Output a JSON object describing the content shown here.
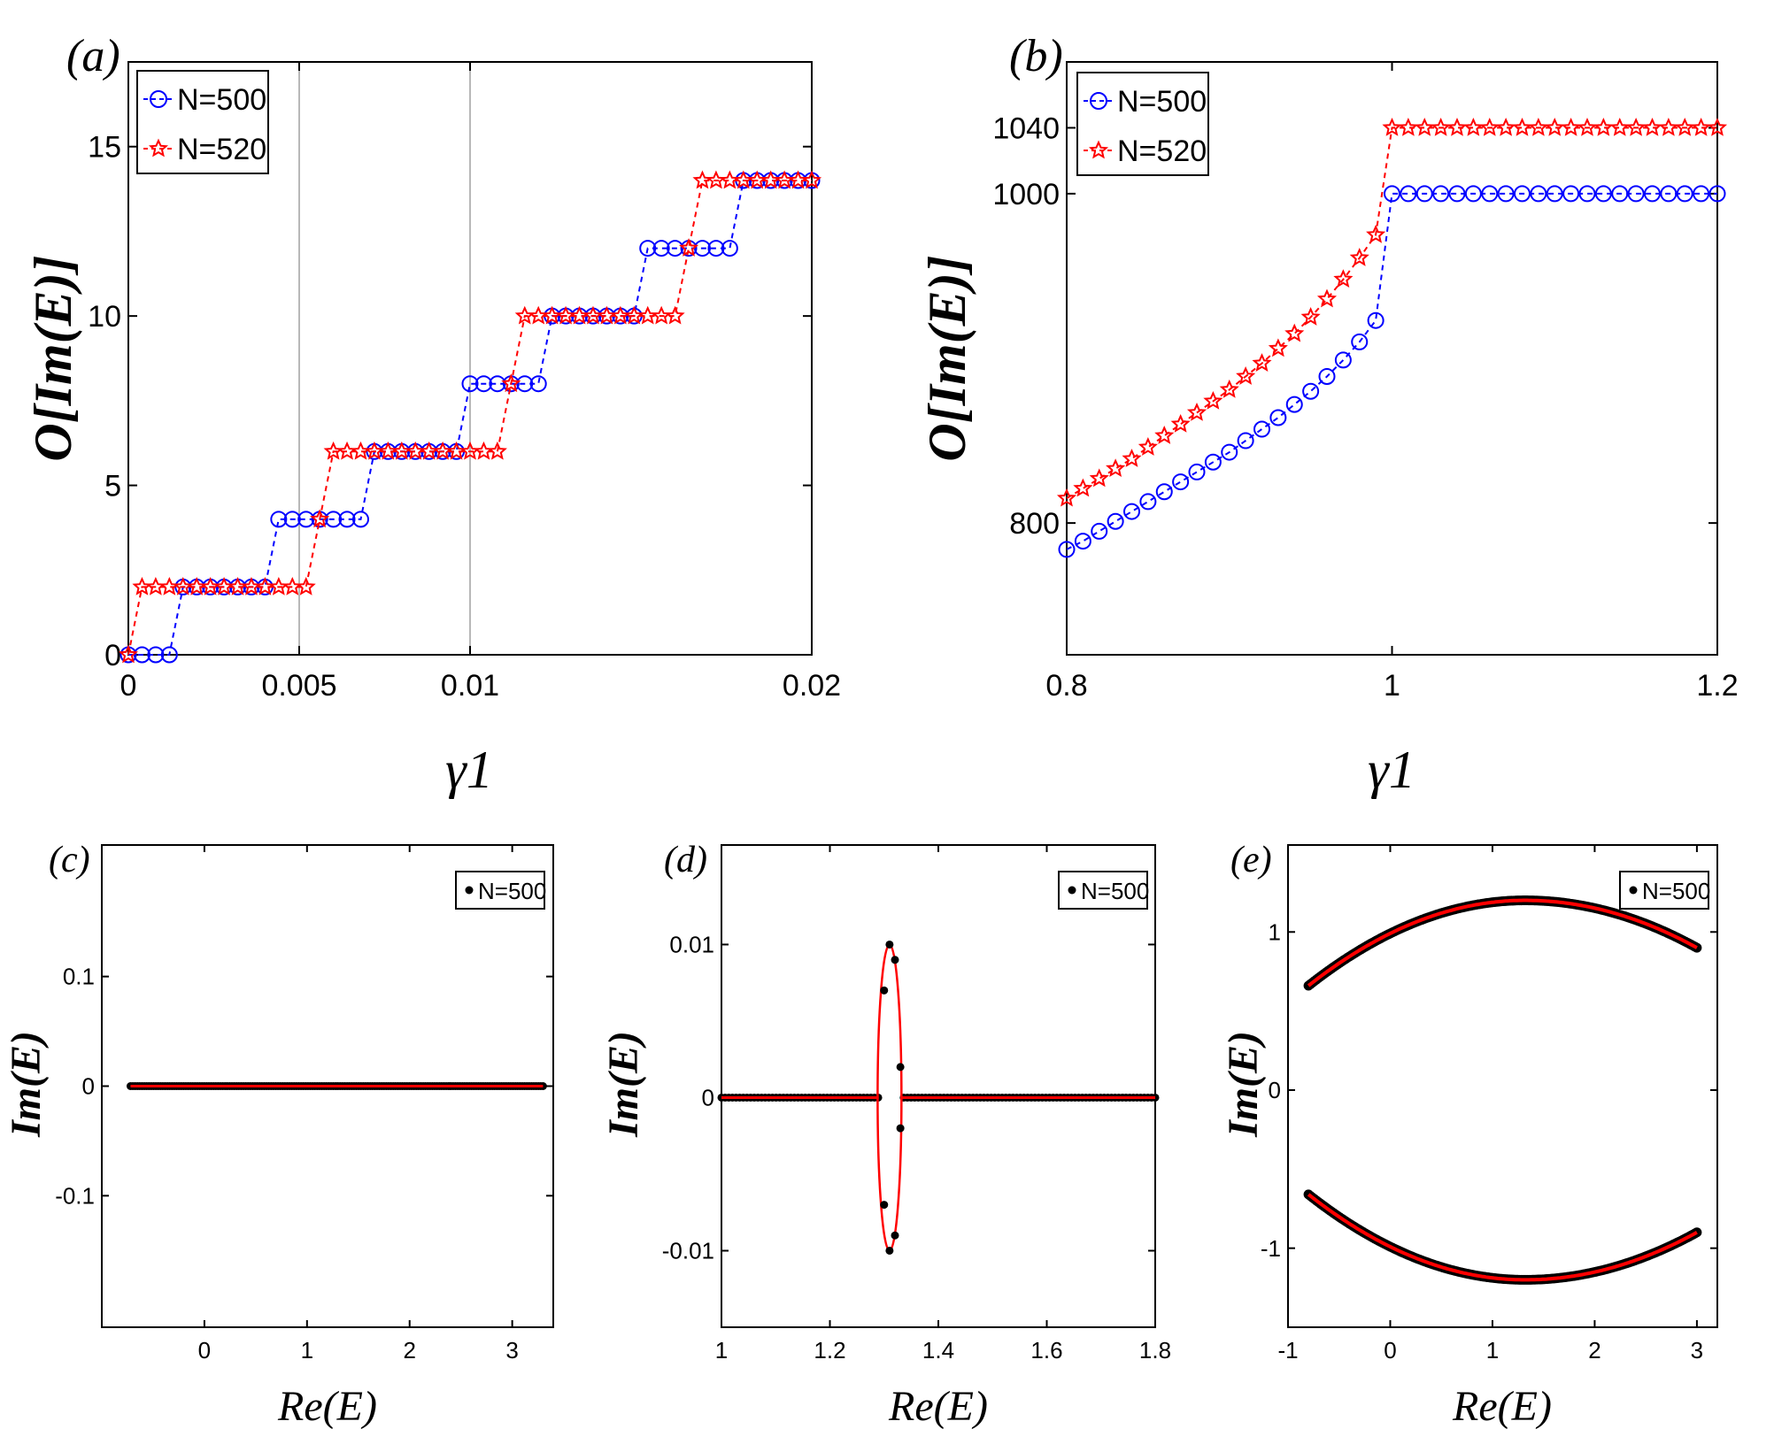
{
  "colors": {
    "blue": "#0000ff",
    "red": "#ff0000",
    "black": "#000000"
  },
  "chart_data": [
    {
      "id": "a",
      "type": "line",
      "panel_label": "(a)",
      "xlabel": "γ1",
      "ylabel": "O[Im(E)]",
      "xlim": [
        0,
        0.02
      ],
      "ylim": [
        0,
        17.5
      ],
      "xticks": [
        0,
        0.005,
        0.01,
        0.02
      ],
      "xtick_labels": [
        "0",
        "0.005",
        "0.01",
        "0.02"
      ],
      "yticks": [
        0,
        5,
        10,
        15
      ],
      "ytick_labels": [
        "0",
        "5",
        "10",
        "15"
      ],
      "reference_lines_x": [
        0.005,
        0.01
      ],
      "legend": {
        "position": "top-left",
        "entries": [
          "N=500",
          "N=520"
        ]
      },
      "series": [
        {
          "name": "N=500",
          "marker": "circle",
          "color": "#0000ff",
          "x": [
            0,
            0.0004,
            0.0008,
            0.0012,
            0.0016,
            0.002,
            0.0024,
            0.0028,
            0.0032,
            0.0036,
            0.004,
            0.0044,
            0.0048,
            0.0052,
            0.0056,
            0.006,
            0.0064,
            0.0068,
            0.0072,
            0.0076,
            0.008,
            0.0084,
            0.0088,
            0.0092,
            0.0096,
            0.01,
            0.0104,
            0.0108,
            0.0112,
            0.0116,
            0.012,
            0.0124,
            0.0128,
            0.0132,
            0.0136,
            0.014,
            0.0144,
            0.0148,
            0.0152,
            0.0156,
            0.016,
            0.0164,
            0.0168,
            0.0172,
            0.0176,
            0.018,
            0.0184,
            0.0188,
            0.0192,
            0.0196,
            0.02
          ],
          "values": [
            0,
            0,
            0,
            0,
            2,
            2,
            2,
            2,
            2,
            2,
            2,
            4,
            4,
            4,
            4,
            4,
            4,
            4,
            6,
            6,
            6,
            6,
            6,
            6,
            6,
            8,
            8,
            8,
            8,
            8,
            8,
            10,
            10,
            10,
            10,
            10,
            10,
            10,
            12,
            12,
            12,
            12,
            12,
            12,
            12,
            14,
            14,
            14,
            14,
            14,
            14
          ]
        },
        {
          "name": "N=520",
          "marker": "star",
          "color": "#ff0000",
          "x": [
            0,
            0.0004,
            0.0008,
            0.0012,
            0.0016,
            0.002,
            0.0024,
            0.0028,
            0.0032,
            0.0036,
            0.004,
            0.0044,
            0.0048,
            0.0052,
            0.0056,
            0.006,
            0.0064,
            0.0068,
            0.0072,
            0.0076,
            0.008,
            0.0084,
            0.0088,
            0.0092,
            0.0096,
            0.01,
            0.0104,
            0.0108,
            0.0112,
            0.0116,
            0.012,
            0.0124,
            0.0128,
            0.0132,
            0.0136,
            0.014,
            0.0144,
            0.0148,
            0.0152,
            0.0156,
            0.016,
            0.0164,
            0.0168,
            0.0172,
            0.0176,
            0.018,
            0.0184,
            0.0188,
            0.0192,
            0.0196,
            0.02
          ],
          "values": [
            0,
            2,
            2,
            2,
            2,
            2,
            2,
            2,
            2,
            2,
            2,
            2,
            2,
            2,
            4,
            6,
            6,
            6,
            6,
            6,
            6,
            6,
            6,
            6,
            6,
            6,
            6,
            6,
            8,
            10,
            10,
            10,
            10,
            10,
            10,
            10,
            10,
            10,
            10,
            10,
            10,
            12,
            14,
            14,
            14,
            14,
            14,
            14,
            14,
            14,
            14
          ]
        }
      ]
    },
    {
      "id": "b",
      "type": "line",
      "panel_label": "(b)",
      "xlabel": "γ1",
      "ylabel": "O[Im(E)]",
      "xlim": [
        0.8,
        1.2
      ],
      "ylim": [
        720,
        1080
      ],
      "xticks": [
        0.8,
        1,
        1.2
      ],
      "xtick_labels": [
        "0.8",
        "1",
        "1.2"
      ],
      "yticks": [
        800,
        1000,
        1040
      ],
      "ytick_labels": [
        "800",
        "1000",
        "1040"
      ],
      "legend": {
        "position": "top-left",
        "entries": [
          "N=500",
          "N=520"
        ]
      },
      "series": [
        {
          "name": "N=500",
          "marker": "circle",
          "color": "#0000ff",
          "x": [
            0.8,
            0.81,
            0.82,
            0.83,
            0.84,
            0.85,
            0.86,
            0.87,
            0.88,
            0.89,
            0.9,
            0.91,
            0.92,
            0.93,
            0.94,
            0.95,
            0.96,
            0.97,
            0.98,
            0.99,
            1.0,
            1.01,
            1.02,
            1.03,
            1.04,
            1.05,
            1.06,
            1.07,
            1.08,
            1.09,
            1.1,
            1.11,
            1.12,
            1.13,
            1.14,
            1.15,
            1.16,
            1.17,
            1.18,
            1.19,
            1.2
          ],
          "values": [
            784,
            789,
            795,
            801,
            807,
            813,
            819,
            825,
            831,
            837,
            843,
            850,
            857,
            864,
            872,
            880,
            889,
            899,
            910,
            923,
            1000,
            1000,
            1000,
            1000,
            1000,
            1000,
            1000,
            1000,
            1000,
            1000,
            1000,
            1000,
            1000,
            1000,
            1000,
            1000,
            1000,
            1000,
            1000,
            1000,
            1000
          ]
        },
        {
          "name": "N=520",
          "marker": "star",
          "color": "#ff0000",
          "x": [
            0.8,
            0.81,
            0.82,
            0.83,
            0.84,
            0.85,
            0.86,
            0.87,
            0.88,
            0.89,
            0.9,
            0.91,
            0.92,
            0.93,
            0.94,
            0.95,
            0.96,
            0.97,
            0.98,
            0.99,
            1.0,
            1.01,
            1.02,
            1.03,
            1.04,
            1.05,
            1.06,
            1.07,
            1.08,
            1.09,
            1.1,
            1.11,
            1.12,
            1.13,
            1.14,
            1.15,
            1.16,
            1.17,
            1.18,
            1.19,
            1.2
          ],
          "values": [
            815,
            821,
            827,
            833,
            839,
            846,
            853,
            860,
            867,
            874,
            881,
            889,
            897,
            906,
            915,
            925,
            936,
            948,
            961,
            975,
            1040,
            1040,
            1040,
            1040,
            1040,
            1040,
            1040,
            1040,
            1040,
            1040,
            1040,
            1040,
            1040,
            1040,
            1040,
            1040,
            1040,
            1040,
            1040,
            1040,
            1040
          ]
        }
      ]
    },
    {
      "id": "c",
      "type": "scatter",
      "panel_label": "(c)",
      "xlabel": "Re(E)",
      "ylabel": "Im(E)",
      "xlim": [
        -1,
        3.4
      ],
      "ylim": [
        -0.22,
        0.22
      ],
      "xticks": [
        0,
        1,
        2,
        3
      ],
      "xtick_labels": [
        "0",
        "1",
        "2",
        "3"
      ],
      "yticks": [
        -0.1,
        0,
        0.1
      ],
      "ytick_labels": [
        "-0.1",
        "0",
        "0.1"
      ],
      "legend": {
        "position": "top-right",
        "entries": [
          "N=500"
        ]
      },
      "shape": "line",
      "params": {
        "x0": -0.72,
        "x1": 3.3,
        "y": 0,
        "n": 180
      }
    },
    {
      "id": "d",
      "type": "scatter",
      "panel_label": "(d)",
      "xlabel": "Re(E)",
      "ylabel": "Im(E)",
      "xlim": [
        1,
        1.8
      ],
      "ylim": [
        -0.015,
        0.0165
      ],
      "xticks": [
        1,
        1.2,
        1.4,
        1.6,
        1.8
      ],
      "xtick_labels": [
        "1",
        "1.2",
        "1.4",
        "1.6",
        "1.8"
      ],
      "yticks": [
        -0.01,
        0,
        0.01
      ],
      "ytick_labels": [
        "-0.01",
        "0",
        "0.01"
      ],
      "legend": {
        "position": "top-right",
        "entries": [
          "N=500"
        ]
      },
      "shape": "ellipse-line",
      "params": {
        "x0": 1.0,
        "x1": 1.8,
        "gap_left": 1.29,
        "gap_right": 1.33,
        "n": 120,
        "ellipse": {
          "cx": 1.31,
          "cy": 0,
          "rx": 0.022,
          "ry": 0.01
        },
        "ellipse_points": [
          [
            1.3,
            0.007
          ],
          [
            1.31,
            0.01
          ],
          [
            1.32,
            0.009
          ],
          [
            1.33,
            0.002
          ],
          [
            1.33,
            -0.002
          ],
          [
            1.32,
            -0.009
          ],
          [
            1.31,
            -0.01
          ],
          [
            1.3,
            -0.007
          ]
        ]
      }
    },
    {
      "id": "e",
      "type": "scatter",
      "panel_label": "(e)",
      "xlabel": "Re(E)",
      "ylabel": "Im(E)",
      "xlim": [
        -1,
        3.2
      ],
      "ylim": [
        -1.5,
        1.55
      ],
      "xticks": [
        -1,
        0,
        1,
        2,
        3
      ],
      "xtick_labels": [
        "-1",
        "0",
        "1",
        "2",
        "3"
      ],
      "yticks": [
        -1,
        0,
        1
      ],
      "ytick_labels": [
        "-1",
        "0",
        "1"
      ],
      "legend": {
        "position": "top-right",
        "entries": [
          "N=500"
        ]
      },
      "shape": "arcs",
      "params": {
        "x0": -0.8,
        "x1": 3.0,
        "peak_x": 1.32,
        "peak_y": 1.2,
        "y_left": 0.66,
        "y_right": 0.9,
        "n": 200
      }
    }
  ]
}
